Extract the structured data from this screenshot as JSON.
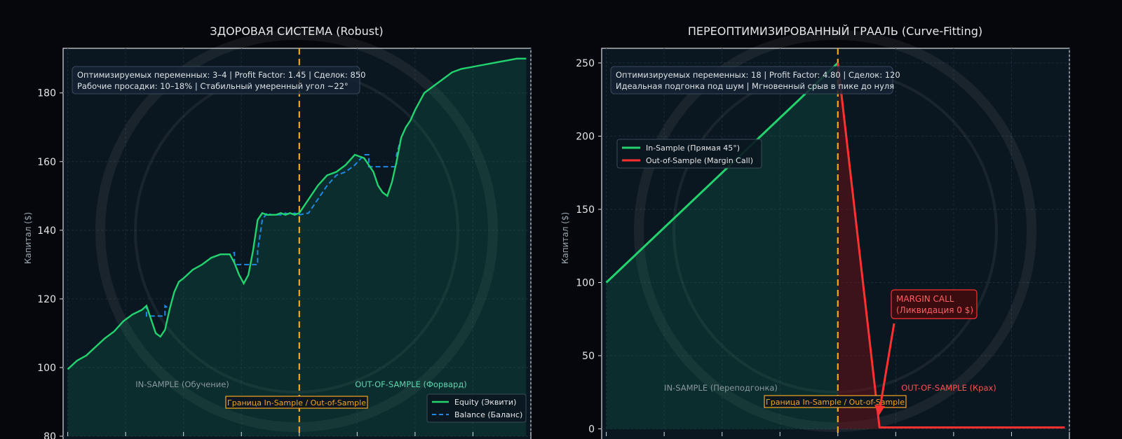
{
  "colors": {
    "background": "#05070d",
    "plot_bg": "#0a1620",
    "equity": "#22d36e",
    "balance": "#1e88e5",
    "divider": "#f5a623",
    "crash": "#ff3030",
    "fill_green": "#0f6b4f",
    "fill_red": "#7a1016",
    "text": "#e6e6e6",
    "muted": "#9aa6ae"
  },
  "chart_data": [
    {
      "type": "line",
      "title": "ЗДОРОВАЯ СИСТЕМА (Robust)",
      "ylabel": "Капитал ($)",
      "xlabel": "",
      "ylim": [
        80,
        193
      ],
      "xlim": [
        -2,
        200
      ],
      "yticks": [
        80,
        100,
        120,
        140,
        160,
        180
      ],
      "grid": true,
      "divider_x": 100,
      "divider_label": "Граница In-Sample / Out-of-Sample",
      "info_lines": [
        "Оптимизируемых переменных: 3–4 | Profit Factor: 1.45 | Сделок: 850",
        "Рабочие просадки: 10–18% | Стабильный умеренный угол ~22°"
      ],
      "region_labels": {
        "in_sample": "IN-SAMPLE (Обучение)",
        "out_of_sample": "OUT-OF-SAMPLE (Форвард)"
      },
      "legend_position": "lower-right",
      "series": [
        {
          "name": "Equity (Эквити)",
          "style": "solid",
          "x": [
            0,
            4,
            8,
            12,
            16,
            20,
            24,
            28,
            32,
            34,
            36,
            38,
            40,
            42,
            44,
            46,
            48,
            50,
            54,
            58,
            62,
            66,
            70,
            72,
            74,
            76,
            78,
            80,
            82,
            84,
            86,
            88,
            90,
            92,
            94,
            96,
            98,
            100,
            104,
            108,
            112,
            116,
            120,
            124,
            128,
            132,
            134,
            136,
            138,
            140,
            142,
            144,
            146,
            148,
            150,
            154,
            158,
            162,
            166,
            170,
            174,
            178,
            182,
            186,
            190,
            194,
            198
          ],
          "values": [
            99.5,
            102,
            103.5,
            106,
            108.5,
            110.5,
            113.5,
            115.5,
            116.8,
            118,
            114,
            110,
            109,
            111,
            117,
            122,
            125,
            126,
            128.5,
            130,
            132,
            133,
            133,
            130.5,
            127,
            124.5,
            127,
            134,
            143,
            145,
            144.5,
            144.5,
            144.5,
            145,
            144.5,
            145,
            144.5,
            145,
            149,
            153,
            156,
            157,
            159,
            162,
            161,
            157,
            153,
            151,
            150,
            154,
            160,
            167,
            170,
            172,
            175,
            180,
            182,
            184,
            186,
            187,
            187.5,
            188,
            188.5,
            189,
            189.5,
            190,
            190
          ]
        },
        {
          "name": "Balance (Баланс)",
          "style": "dashed",
          "x": [
            0,
            4,
            8,
            12,
            16,
            20,
            24,
            28,
            32,
            34,
            34,
            42,
            42,
            44,
            46,
            48,
            50,
            54,
            58,
            62,
            66,
            70,
            72,
            72,
            82,
            82,
            84,
            86,
            88,
            90,
            92,
            94,
            96,
            98,
            100,
            104,
            108,
            112,
            116,
            120,
            124,
            128,
            130,
            130,
            142,
            142,
            144,
            146,
            148,
            150,
            154,
            158,
            162,
            166,
            170,
            174,
            178,
            182,
            186,
            190,
            194,
            198
          ],
          "values": [
            99.5,
            102,
            103.5,
            106,
            108.5,
            110.5,
            113.5,
            115.5,
            116.8,
            118,
            115,
            115,
            118,
            117,
            122,
            125,
            126,
            128.5,
            130,
            132,
            133,
            133,
            133.5,
            130,
            130,
            134,
            143,
            145,
            144.5,
            144.5,
            144.5,
            145,
            144.5,
            145,
            144.5,
            145,
            149,
            153,
            156,
            157,
            159,
            162,
            162,
            158.5,
            158.5,
            162,
            167,
            170,
            172,
            175,
            180,
            182,
            184,
            186,
            187,
            187.5,
            188,
            188.5,
            189,
            189.5,
            190,
            190
          ]
        }
      ]
    },
    {
      "type": "line",
      "title": "ПЕРЕОПТИМИЗИРОВАННЫЙ ГРААЛЬ (Curve-Fitting)",
      "ylabel": "Капитал ($)",
      "xlabel": "",
      "ylim": [
        -5,
        260
      ],
      "xlim": [
        -2,
        200
      ],
      "yticks": [
        0,
        50,
        100,
        150,
        200,
        250
      ],
      "grid": true,
      "divider_x": 100,
      "divider_label": "Граница In-Sample / Out-of-Sample",
      "info_lines": [
        "Оптимизируемых переменных: 18 | Profit Factor: 4.80 | Сделок: 120",
        "Идеальная подгонка под шум | Мгновенный срыв в пике до нуля"
      ],
      "region_labels": {
        "in_sample": "IN-SAMPLE (Переподгонка)",
        "out_of_sample": "OUT-OF-SAMPLE (Крах)"
      },
      "legend_position": "upper-left",
      "annotation": {
        "text_lines": [
          "MARGIN CALL",
          "(Ликвидация 0 $)"
        ],
        "x": 118,
        "y": 1
      },
      "series": [
        {
          "name": "In-Sample (Прямая 45°)",
          "x": [
            0,
            100
          ],
          "values": [
            100,
            250
          ]
        },
        {
          "name": "Out-of-Sample (Margin Call)",
          "x": [
            100,
            118,
            120,
            140,
            160,
            180,
            198
          ],
          "values": [
            250,
            1,
            1,
            1,
            1,
            1,
            1
          ]
        }
      ]
    }
  ]
}
